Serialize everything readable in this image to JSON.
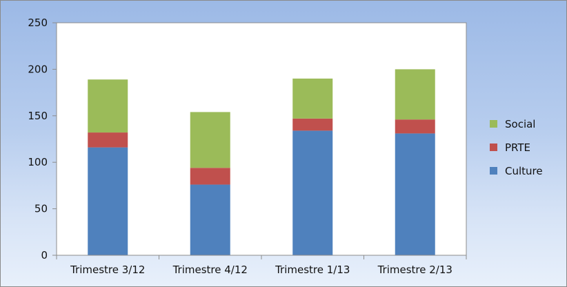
{
  "chart_data": {
    "type": "bar",
    "stacked": true,
    "categories": [
      "Trimestre 3/12",
      "Trimestre 4/12",
      "Trimestre 1/13",
      "Trimestre 2/13"
    ],
    "series": [
      {
        "name": "Culture",
        "color": "#4f81bd",
        "values": [
          116,
          76,
          134,
          131
        ]
      },
      {
        "name": "PRTE",
        "color": "#c0504d",
        "values": [
          16,
          18,
          13,
          15
        ]
      },
      {
        "name": "Social",
        "color": "#9bbb59",
        "values": [
          57,
          60,
          43,
          54
        ]
      }
    ],
    "ylim": [
      0,
      250
    ],
    "yticks": [
      0,
      50,
      100,
      150,
      200,
      250
    ],
    "grid": false,
    "legend_position": "right",
    "legend_order": [
      "Social",
      "PRTE",
      "Culture"
    ],
    "title": "",
    "xlabel": "",
    "ylabel": ""
  }
}
